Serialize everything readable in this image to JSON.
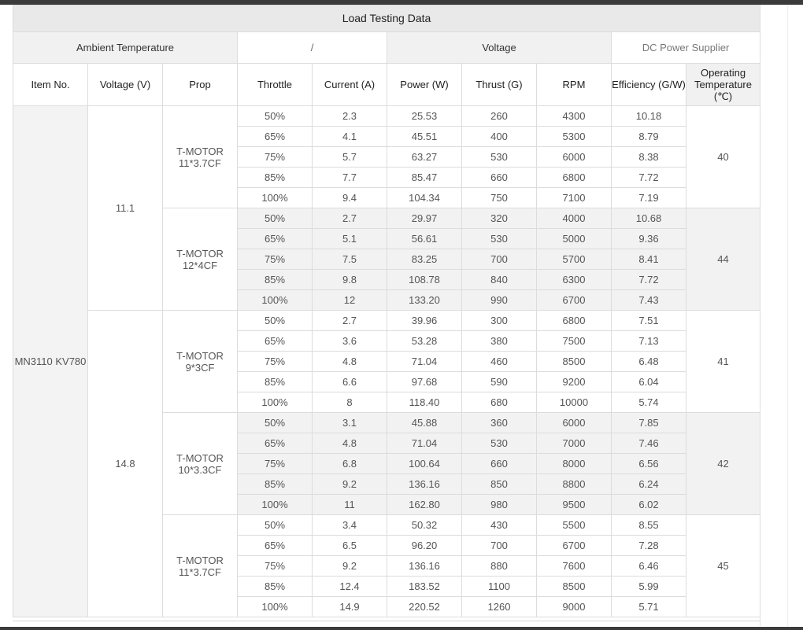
{
  "title": "Load Testing Data",
  "group_headers": {
    "ambient": "Ambient Temperature",
    "slash": "/",
    "voltage": "Voltage",
    "dc": "DC Power Supplier"
  },
  "columns": {
    "item": "Item No.",
    "voltage": "Voltage (V)",
    "prop": "Prop",
    "throttle": "Throttle",
    "current": "Current (A)",
    "power": "Power (W)",
    "thrust": "Thrust (G)",
    "rpm": "RPM",
    "efficiency": "Efficiency (G/W)",
    "temperature": "Operating Temperature (℃)"
  },
  "item_no": "MN3110 KV780",
  "voltage_groups": [
    {
      "voltage": "11.1",
      "props": [
        {
          "prop": "T-MOTOR 11*3.7CF",
          "temperature": "40",
          "rows": [
            [
              "50%",
              "2.3",
              "25.53",
              "260",
              "4300",
              "10.18"
            ],
            [
              "65%",
              "4.1",
              "45.51",
              "400",
              "5300",
              "8.79"
            ],
            [
              "75%",
              "5.7",
              "63.27",
              "530",
              "6000",
              "8.38"
            ],
            [
              "85%",
              "7.7",
              "85.47",
              "660",
              "6800",
              "7.72"
            ],
            [
              "100%",
              "9.4",
              "104.34",
              "750",
              "7100",
              "7.19"
            ]
          ]
        },
        {
          "prop": "T-MOTOR 12*4CF",
          "temperature": "44",
          "rows": [
            [
              "50%",
              "2.7",
              "29.97",
              "320",
              "4000",
              "10.68"
            ],
            [
              "65%",
              "5.1",
              "56.61",
              "530",
              "5000",
              "9.36"
            ],
            [
              "75%",
              "7.5",
              "83.25",
              "700",
              "5700",
              "8.41"
            ],
            [
              "85%",
              "9.8",
              "108.78",
              "840",
              "6300",
              "7.72"
            ],
            [
              "100%",
              "12",
              "133.20",
              "990",
              "6700",
              "7.43"
            ]
          ]
        }
      ]
    },
    {
      "voltage": "14.8",
      "props": [
        {
          "prop": "T-MOTOR 9*3CF",
          "temperature": "41",
          "rows": [
            [
              "50%",
              "2.7",
              "39.96",
              "300",
              "6800",
              "7.51"
            ],
            [
              "65%",
              "3.6",
              "53.28",
              "380",
              "7500",
              "7.13"
            ],
            [
              "75%",
              "4.8",
              "71.04",
              "460",
              "8500",
              "6.48"
            ],
            [
              "85%",
              "6.6",
              "97.68",
              "590",
              "9200",
              "6.04"
            ],
            [
              "100%",
              "8",
              "118.40",
              "680",
              "10000",
              "5.74"
            ]
          ]
        },
        {
          "prop": "T-MOTOR 10*3.3CF",
          "temperature": "42",
          "rows": [
            [
              "50%",
              "3.1",
              "45.88",
              "360",
              "6000",
              "7.85"
            ],
            [
              "65%",
              "4.8",
              "71.04",
              "530",
              "7000",
              "7.46"
            ],
            [
              "75%",
              "6.8",
              "100.64",
              "660",
              "8000",
              "6.56"
            ],
            [
              "85%",
              "9.2",
              "136.16",
              "850",
              "8800",
              "6.24"
            ],
            [
              "100%",
              "11",
              "162.80",
              "980",
              "9500",
              "6.02"
            ]
          ]
        },
        {
          "prop": "T-MOTOR 11*3.7CF",
          "temperature": "45",
          "rows": [
            [
              "50%",
              "3.4",
              "50.32",
              "430",
              "5500",
              "8.55"
            ],
            [
              "65%",
              "6.5",
              "96.20",
              "700",
              "6700",
              "7.28"
            ],
            [
              "75%",
              "9.2",
              "136.16",
              "880",
              "7600",
              "6.46"
            ],
            [
              "85%",
              "12.4",
              "183.52",
              "1100",
              "8500",
              "5.99"
            ],
            [
              "100%",
              "14.9",
              "220.52",
              "1260",
              "9000",
              "5.71"
            ]
          ]
        }
      ]
    }
  ]
}
